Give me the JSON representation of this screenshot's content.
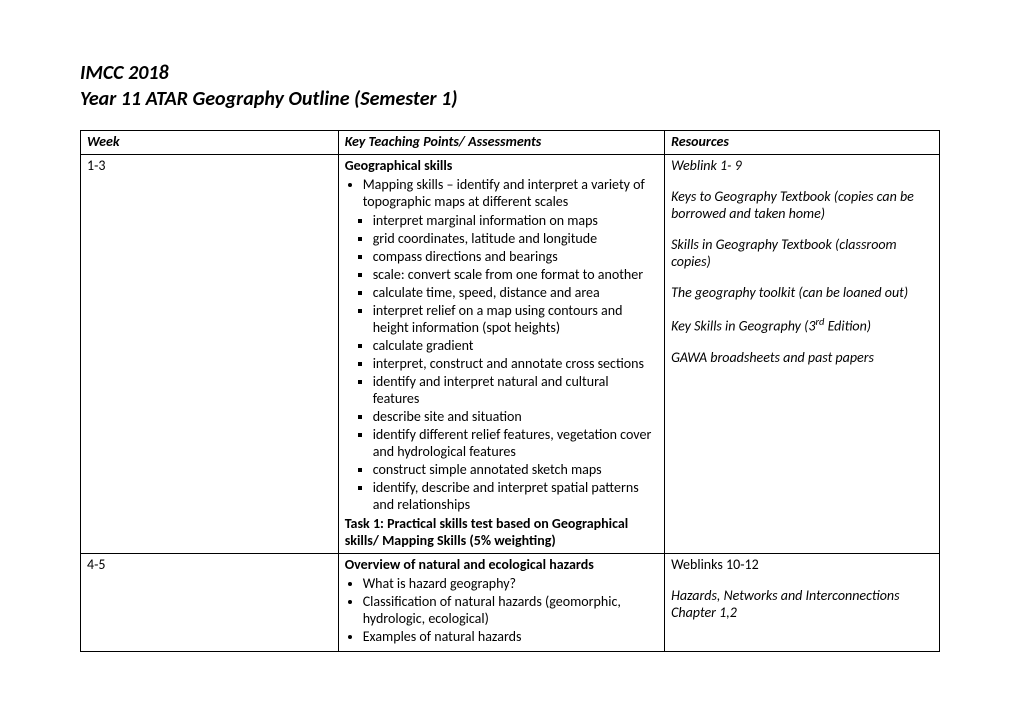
{
  "header": {
    "line1": "IMCC 2018",
    "line2": "Year 11 ATAR Geography Outline (Semester 1)"
  },
  "table": {
    "columns": [
      "Week",
      "Key Teaching Points/ Assessments",
      "Resources"
    ],
    "rows": [
      {
        "week": "1-3",
        "points_heading": "Geographical skills",
        "bullets_lead": "Mapping skills – identify and interpret a variety of topographic maps at different scales",
        "squares": [
          "interpret marginal information on maps",
          "grid coordinates, latitude and longitude",
          "compass directions and bearings",
          "scale: convert scale from one format to another",
          "calculate time, speed, distance and area",
          "interpret relief on a map using contours and height information (spot heights)",
          "calculate gradient",
          "interpret, construct and annotate cross sections",
          "identify and interpret natural and cultural features",
          "describe site and situation",
          "identify different relief features, vegetation cover and hydrological features",
          "construct simple annotated sketch maps",
          "identify, describe and interpret spatial patterns and relationships"
        ],
        "task_line": "Task 1: Practical skills test based on Geographical skills/ Mapping Skills (5% weighting)",
        "resources": [
          "Weblink 1- 9",
          "Keys to Geography Textbook (copies can be borrowed and taken home)",
          "Skills in Geography Textbook (classroom copies)",
          "The geography toolkit (can be loaned out)"
        ],
        "resource_key_skills_prefix": "Key Skills in Geography (3",
        "resource_key_skills_sup": "rd",
        "resource_key_skills_suffix": " Edition)",
        "resource_last": "GAWA broadsheets and past papers"
      },
      {
        "week": "4-5",
        "points_heading": "Overview of natural and ecological hazards",
        "bullets": [
          "What is hazard geography?",
          "Classification of natural hazards (geomorphic, hydrologic, ecological)",
          "Examples of natural hazards"
        ],
        "resource_first": "Weblinks 10-12",
        "resource_italic": "Hazards, Networks and Interconnections Chapter 1,2"
      }
    ]
  }
}
